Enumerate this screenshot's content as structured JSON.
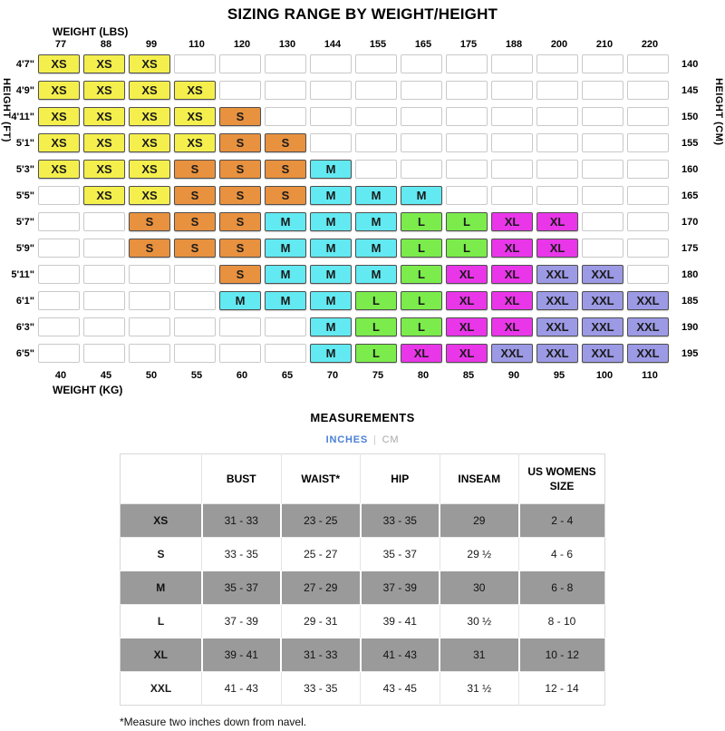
{
  "title": "SIZING RANGE BY WEIGHT/HEIGHT",
  "chart_data": [
    {
      "type": "heatmap",
      "title": "SIZING RANGE BY WEIGHT/HEIGHT",
      "x_axis_top_label": "WEIGHT (LBS)",
      "x_axis_bottom_label": "WEIGHT (KG)",
      "y_axis_left_label": "HEIGHT (FT)",
      "y_axis_right_label": "HEIGHT (CM)",
      "x_lbs": [
        "77",
        "88",
        "99",
        "110",
        "120",
        "130",
        "144",
        "155",
        "165",
        "175",
        "188",
        "200",
        "210",
        "220"
      ],
      "x_kg": [
        "40",
        "45",
        "50",
        "55",
        "60",
        "65",
        "70",
        "75",
        "80",
        "85",
        "90",
        "95",
        "100",
        "110"
      ],
      "rows": [
        {
          "ft": "4'7\"",
          "cm": "140",
          "sizes": [
            "XS",
            "XS",
            "XS",
            "",
            "",
            "",
            "",
            "",
            "",
            "",
            "",
            "",
            "",
            ""
          ]
        },
        {
          "ft": "4'9\"",
          "cm": "145",
          "sizes": [
            "XS",
            "XS",
            "XS",
            "XS",
            "",
            "",
            "",
            "",
            "",
            "",
            "",
            "",
            "",
            ""
          ]
        },
        {
          "ft": "4'11\"",
          "cm": "150",
          "sizes": [
            "XS",
            "XS",
            "XS",
            "XS",
            "S",
            "",
            "",
            "",
            "",
            "",
            "",
            "",
            "",
            ""
          ]
        },
        {
          "ft": "5'1\"",
          "cm": "155",
          "sizes": [
            "XS",
            "XS",
            "XS",
            "XS",
            "S",
            "S",
            "",
            "",
            "",
            "",
            "",
            "",
            "",
            ""
          ]
        },
        {
          "ft": "5'3\"",
          "cm": "160",
          "sizes": [
            "XS",
            "XS",
            "XS",
            "S",
            "S",
            "S",
            "M",
            "",
            "",
            "",
            "",
            "",
            "",
            ""
          ]
        },
        {
          "ft": "5'5\"",
          "cm": "165",
          "sizes": [
            "",
            "XS",
            "XS",
            "S",
            "S",
            "S",
            "M",
            "M",
            "M",
            "",
            "",
            "",
            "",
            ""
          ]
        },
        {
          "ft": "5'7\"",
          "cm": "170",
          "sizes": [
            "",
            "",
            "S",
            "S",
            "S",
            "M",
            "M",
            "M",
            "L",
            "L",
            "XL",
            "XL",
            "",
            ""
          ]
        },
        {
          "ft": "5'9\"",
          "cm": "175",
          "sizes": [
            "",
            "",
            "S",
            "S",
            "S",
            "M",
            "M",
            "M",
            "L",
            "L",
            "XL",
            "XL",
            "",
            ""
          ]
        },
        {
          "ft": "5'11\"",
          "cm": "180",
          "sizes": [
            "",
            "",
            "",
            "",
            "S",
            "M",
            "M",
            "M",
            "L",
            "XL",
            "XL",
            "XXL",
            "XXL",
            ""
          ]
        },
        {
          "ft": "6'1\"",
          "cm": "185",
          "sizes": [
            "",
            "",
            "",
            "",
            "M",
            "M",
            "M",
            "L",
            "L",
            "XL",
            "XL",
            "XXL",
            "XXL",
            "XXL"
          ]
        },
        {
          "ft": "6'3\"",
          "cm": "190",
          "sizes": [
            "",
            "",
            "",
            "",
            "",
            "",
            "M",
            "L",
            "L",
            "XL",
            "XL",
            "XXL",
            "XXL",
            "XXL"
          ]
        },
        {
          "ft": "6'5\"",
          "cm": "195",
          "sizes": [
            "",
            "",
            "",
            "",
            "",
            "",
            "M",
            "L",
            "XL",
            "XL",
            "XXL",
            "XXL",
            "XXL",
            "XXL"
          ]
        }
      ],
      "size_colors": {
        "XS": "#F4EF4D",
        "S": "#E8913F",
        "M": "#62E9F1",
        "L": "#7BEC4B",
        "XL": "#E936E9",
        "XXL": "#9C9AE5"
      }
    },
    {
      "type": "table",
      "title": "MEASUREMENTS",
      "columns": [
        "",
        "BUST",
        "WAIST*",
        "HIP",
        "INSEAM",
        "US WOMENS SIZE"
      ],
      "rows": [
        [
          "XS",
          "31 - 33",
          "23 - 25",
          "33 - 35",
          "29",
          "2 - 4"
        ],
        [
          "S",
          "33 - 35",
          "25 - 27",
          "35 - 37",
          "29 ½",
          "4 - 6"
        ],
        [
          "M",
          "35 - 37",
          "27 - 29",
          "37 - 39",
          "30",
          "6 - 8"
        ],
        [
          "L",
          "37 - 39",
          "29 - 31",
          "39 - 41",
          "30 ½",
          "8 - 10"
        ],
        [
          "XL",
          "39 - 41",
          "31 - 33",
          "41 - 43",
          "31",
          "10 - 12"
        ],
        [
          "XXL",
          "41 - 43",
          "33 - 35",
          "43 - 45",
          "31 ½",
          "12 - 14"
        ]
      ],
      "shaded_row_indices": [
        0,
        2,
        4
      ]
    }
  ],
  "measurements_section": {
    "title": "MEASUREMENTS",
    "units": {
      "inches_label": "INCHES",
      "separator": "|",
      "cm_label": "CM",
      "active": "INCHES"
    },
    "footnote": "*Measure two inches down from navel."
  }
}
